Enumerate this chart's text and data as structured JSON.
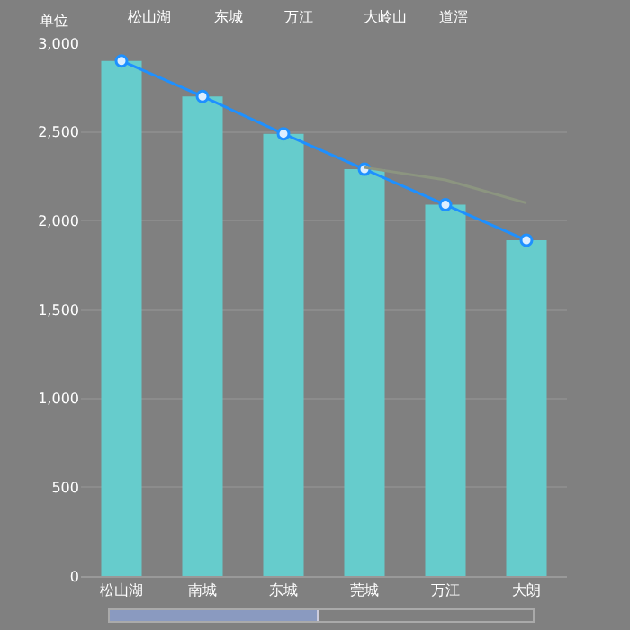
{
  "chart_data": {
    "type": "bar",
    "ylabel": "单位",
    "categories": [
      "松山湖",
      "南城",
      "东城",
      "莞城",
      "万江",
      "大朗"
    ],
    "annotations": [
      "松山湖",
      "东城",
      "万江",
      "大岭山",
      "道滘"
    ],
    "series": [
      {
        "color": "#66cccc",
        "values": [
          2900,
          2700,
          2490,
          2290,
          2090,
          1890
        ]
      },
      {
        "type": "line",
        "color": "#1e90ff",
        "marker": "circle",
        "values": [
          2900,
          2700,
          2490,
          2290,
          2090,
          1890
        ]
      },
      {
        "type": "line",
        "color": "#8c9580",
        "marker": "none",
        "values": [
          null,
          null,
          null,
          2300,
          2230,
          2100
        ]
      }
    ],
    "ylim": [
      0,
      3000
    ],
    "yticks": [
      0,
      {
        "value": 500,
        "label": "500"
      },
      {
        "value": 1000,
        "label": "1,000"
      },
      {
        "value": 1500,
        "label": "1,500"
      },
      {
        "value": 2000,
        "label": "2,000"
      },
      {
        "value": 2500,
        "label": "2,500"
      },
      {
        "value": 3000,
        "label": "3,000"
      }
    ],
    "grid": "y"
  }
}
